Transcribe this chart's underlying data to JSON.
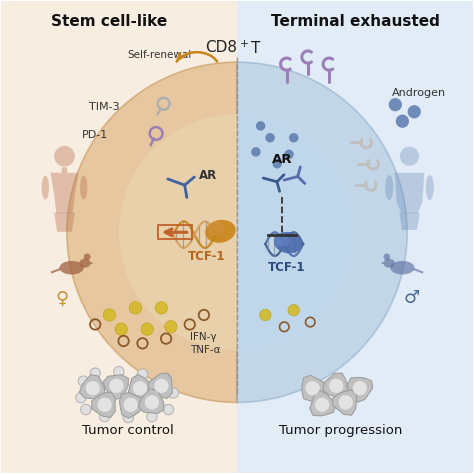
{
  "bg_left_color": "#f7ede0",
  "bg_right_color": "#e2ecf7",
  "title_top": "CD8",
  "title_top_sup": "+ T",
  "title_left": "Stem cell-like",
  "title_right": "Terminal exhausted",
  "label_tcf1_left": "TCF-1",
  "label_tcf1_right": "TCF-1",
  "label_ar_left": "AR",
  "label_ar_right": "AR",
  "label_self_renewal": "Self-renewal",
  "label_tim3": "TIM-3",
  "label_pd1": "PD-1",
  "label_androgen": "Androgen",
  "label_ifn": "IFN-γ",
  "label_tnf": "TNF-α",
  "label_tumor_control": "Tumor control",
  "label_tumor_progress": "Tumor progression",
  "outer_circle_color_left": "#d9a96c",
  "outer_circle_color_right": "#9bbcd6",
  "inner_circle_color_left": "#ead5b0",
  "inner_circle_color_right": "#c0d8ee",
  "color_brown": "#b5651d",
  "color_blue_dark": "#3a5a8c",
  "color_purple": "#9b7fb6",
  "color_gray_receptor": "#b0b0b0",
  "color_orange_arrow": "#c0622a",
  "color_gold_dot": "#d4a820",
  "color_brown_dot": "#8b5a2b",
  "fig_width": 4.74,
  "fig_height": 4.74,
  "dpi": 100
}
